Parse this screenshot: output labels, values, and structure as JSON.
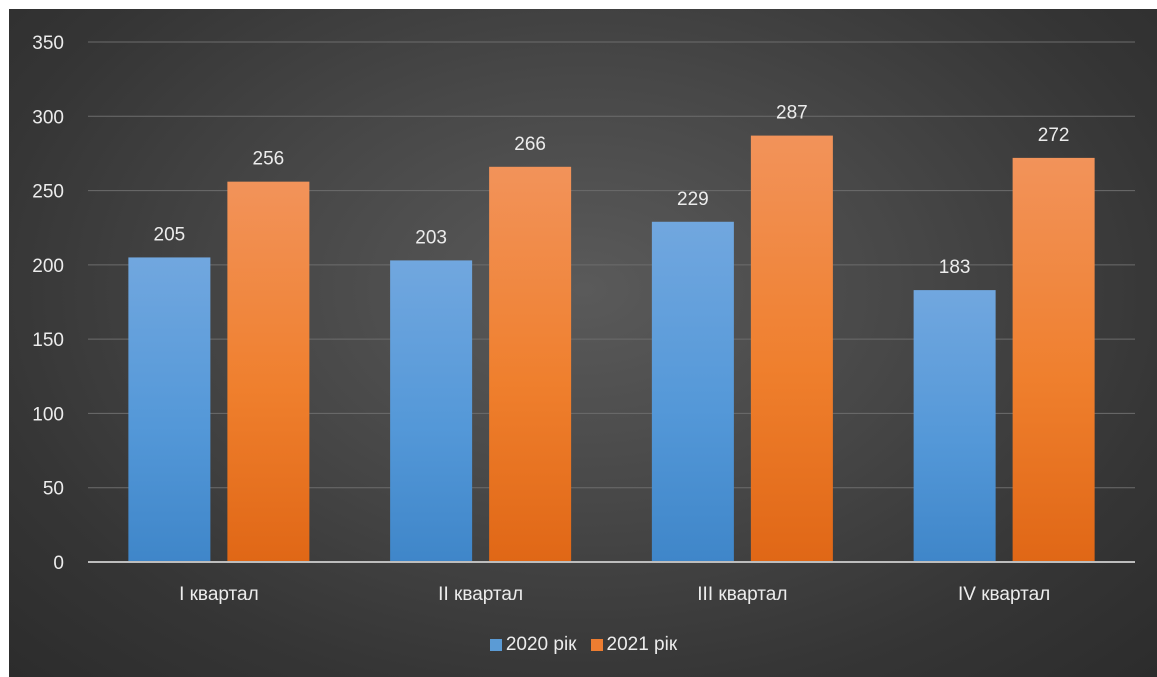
{
  "chart_data": {
    "type": "bar",
    "categories": [
      "I квартал",
      "II квартал",
      "III квартал",
      "IV квартал"
    ],
    "series": [
      {
        "name": "2020 рік",
        "values": [
          205,
          203,
          229,
          183
        ],
        "color": "#5b9bd5"
      },
      {
        "name": "2021 рік",
        "values": [
          256,
          266,
          287,
          272
        ],
        "color": "#ed7d31"
      }
    ],
    "ylim": [
      0,
      350
    ],
    "yticks": [
      0,
      50,
      100,
      150,
      200,
      250,
      300,
      350
    ],
    "grid": true,
    "legend": "bottom",
    "data_labels": true
  }
}
